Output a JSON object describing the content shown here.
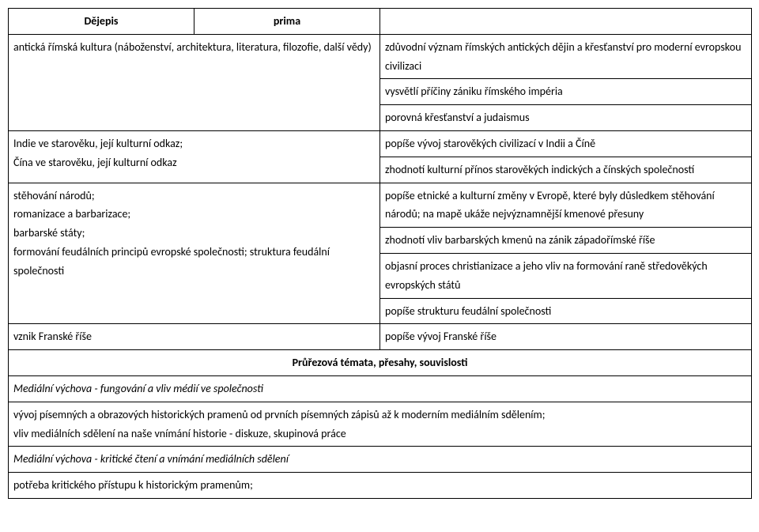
{
  "header": {
    "subject": "Dějepis",
    "grade": "prima"
  },
  "rows": [
    {
      "left": "antická římská kultura (náboženství, architektura, literatura, filozofie, další vědy)",
      "right": "zdůvodní význam římských antických dějin a křesťanství pro moderní evropskou civilizaci"
    },
    {
      "left": "",
      "right": "vysvětlí příčiny zániku římského impéria"
    },
    {
      "left": "",
      "right": "porovná křesťanství a judaismus"
    },
    {
      "left": "Indie ve starověku, její kulturní odkaz;",
      "right": "popíše vývoj starověkých civilizací v Indii a Číně"
    },
    {
      "left": "Čína ve starověku, její kulturní odkaz",
      "right": "zhodnotí kulturní přínos starověkých indických a čínských společností"
    },
    {
      "left": "stěhování národů;\nromanizace a barbarizace;\nbarbarské státy;\nformování feudálních principů evropské společnosti; struktura feudální společnosti",
      "right_lines": [
        "popíše etnické a kulturní změny v Evropě, které byly důsledkem stěhování národů; na mapě ukáže nejvýznamnější kmenové přesuny",
        "zhodnotí vliv barbarských kmenů na zánik západořímské říše",
        "objasní proces christianizace a jeho vliv na formování raně středověkých evropských států",
        "popíše strukturu feudální společnosti"
      ]
    },
    {
      "left": "vznik Franské říše",
      "right": "popíše vývoj Franské říše"
    }
  ],
  "cross_heading": "Průřezová témata, přesahy, souvislosti",
  "sections": [
    {
      "title": "Mediální výchova - fungování a vliv médií ve společnosti",
      "lines": [
        "vývoj písemných a obrazových historických pramenů od prvních písemných zápisů až k moderním mediálním sdělením;",
        "vliv mediálních sdělení na naše vnímání historie - diskuze, skupinová práce"
      ]
    },
    {
      "title": "Mediální výchova - kritické čtení a vnímání mediálních sdělení",
      "lines": [
        "potřeba kritického přístupu k historickým pramenům;"
      ]
    }
  ]
}
